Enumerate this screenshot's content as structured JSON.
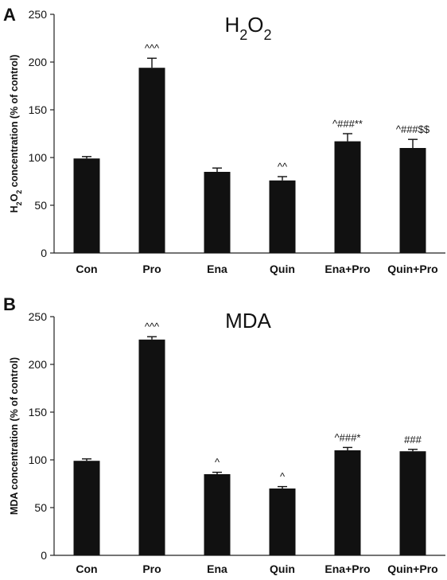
{
  "colors": {
    "bar": "#111111",
    "axis": "#222222",
    "text": "#111111"
  },
  "chart_data": [
    {
      "panel_label": "A",
      "type": "bar",
      "title_parts": [
        "H",
        "2",
        "O",
        "2"
      ],
      "ylabel_parts": [
        "H",
        "2",
        "O",
        "2",
        " concentration (% of control)"
      ],
      "categories": [
        "Con",
        "Pro",
        "Ena",
        "Quin",
        "Ena+Pro",
        "Quin+Pro"
      ],
      "values": [
        99,
        194,
        85,
        76,
        117,
        110
      ],
      "errors": [
        2,
        10,
        4,
        4,
        8,
        9
      ],
      "annotations": [
        "",
        "^^^",
        "",
        "^^",
        "^###**",
        "^###$$"
      ],
      "ylim": [
        0,
        250
      ],
      "yticks": [
        0,
        50,
        100,
        150,
        200,
        250
      ],
      "ytick_labels": [
        "0",
        "50",
        "100",
        "150",
        "200",
        "250"
      ],
      "grid": false,
      "legend": "none"
    },
    {
      "panel_label": "B",
      "type": "bar",
      "title_parts": [
        "MDA"
      ],
      "ylabel_parts": [
        "MDA concentration (% of control)"
      ],
      "categories": [
        "Con",
        "Pro",
        "Ena",
        "Quin",
        "Ena+Pro",
        "Quin+Pro"
      ],
      "values": [
        99,
        226,
        85,
        70,
        110,
        109
      ],
      "errors": [
        2,
        3,
        2,
        2,
        3,
        2
      ],
      "annotations": [
        "",
        "^^^",
        "^",
        "^",
        "^###*",
        "###"
      ],
      "ylim": [
        0,
        250
      ],
      "yticks": [
        0,
        50,
        100,
        150,
        200,
        250
      ],
      "ytick_labels": [
        "0",
        "50",
        "100",
        "150",
        "200",
        "250"
      ],
      "grid": false,
      "legend": "none"
    }
  ]
}
